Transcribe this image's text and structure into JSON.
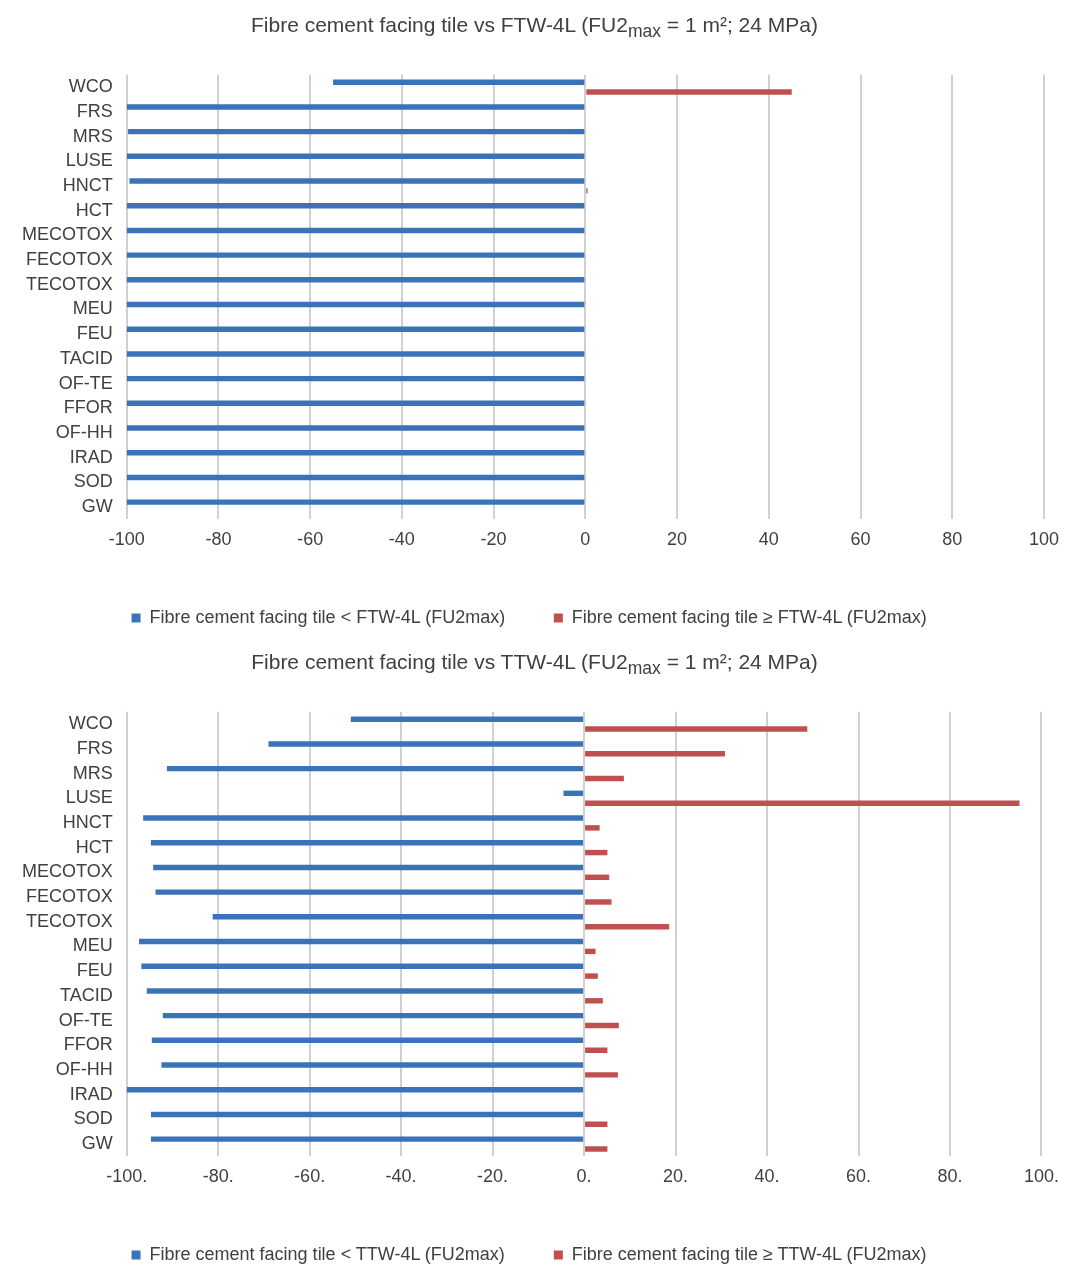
{
  "chart_data": [
    {
      "type": "bar",
      "orientation": "horizontal",
      "title": "Fibre cement facing tile vs FTW-4L (FU2$_{max}$ = 1 m²; 24 MPa)",
      "categories": [
        "WCO",
        "FRS",
        "MRS",
        "LUSE",
        "HNCT",
        "HCT",
        "MECOTOX",
        "FECOTOX",
        "TECOTOX",
        "MEU",
        "FEU",
        "TACID",
        "OF-TE",
        "FFOR",
        "OF-HH",
        "IRAD",
        "SOD",
        "GW"
      ],
      "series": [
        {
          "name": "Fibre cement facing tile < FTW-4L (FU2max)",
          "color": "#3a73b9",
          "values": [
            -55,
            -100,
            -99.7,
            -100,
            -99.4,
            -100,
            -100,
            -100,
            -100,
            -100,
            -100,
            -100,
            -100,
            -100,
            -100,
            -100,
            -100,
            -100
          ]
        },
        {
          "name": "Fibre cement facing tile ≥ FTW-4L (FU2max)",
          "color": "#c0504d",
          "values": [
            45,
            null,
            null,
            null,
            0.5,
            null,
            null,
            null,
            null,
            null,
            null,
            null,
            null,
            null,
            null,
            null,
            null,
            null
          ]
        }
      ],
      "xlim": [
        -100,
        100
      ],
      "xticks": [
        -100,
        -80,
        -60,
        -40,
        -20,
        0,
        20,
        40,
        60,
        80,
        100
      ],
      "grid": "x",
      "legend": "bottom"
    },
    {
      "type": "bar",
      "orientation": "horizontal",
      "title": "Fibre cement facing tile vs TTW-4L (FU2$_{max}$ = 1 m²; 24 MPa)",
      "categories": [
        "WCO",
        "FRS",
        "MRS",
        "LUSE",
        "HNCT",
        "HCT",
        "MECOTOX",
        "FECOTOX",
        "TECOTOX",
        "MEU",
        "FEU",
        "TACID",
        "OF-TE",
        "FFOR",
        "OF-HH",
        "IRAD",
        "SOD",
        "GW"
      ],
      "series": [
        {
          "name": "Fibre cement facing tile < TTW-4L (FU2max)",
          "color": "#3a73b9",
          "values": [
            -51,
            -69,
            -91.2,
            -4.5,
            -96.4,
            -94.7,
            -94.2,
            -93.7,
            -81.2,
            -97.3,
            -96.8,
            -95.6,
            -92.1,
            -94.5,
            -92.4,
            -100,
            -94.7,
            -94.7
          ]
        },
        {
          "name": "Fibre cement facing tile ≥ TTW-4L (FU2max)",
          "color": "#c0504d",
          "values": [
            48.8,
            30.8,
            8.7,
            95.2,
            3.4,
            5.1,
            5.5,
            6,
            18.6,
            2.5,
            3,
            4.1,
            7.6,
            5.1,
            7.4,
            null,
            5.1,
            5.1
          ]
        }
      ],
      "xlim": [
        -100,
        100
      ],
      "xticks": [
        {
          "value": -100,
          "label": "-100."
        },
        {
          "value": -80,
          "label": "-80."
        },
        {
          "value": -60,
          "label": "-60."
        },
        {
          "value": -40,
          "label": "-40."
        },
        {
          "value": -20,
          "label": "-20."
        },
        {
          "value": 0,
          "label": "0."
        },
        {
          "value": 20,
          "label": "20."
        },
        {
          "value": 40,
          "label": "40."
        },
        {
          "value": 60,
          "label": "60."
        },
        {
          "value": 80,
          "label": "80."
        },
        {
          "value": 100,
          "label": "100."
        }
      ],
      "grid": "x",
      "legend": "bottom"
    }
  ]
}
